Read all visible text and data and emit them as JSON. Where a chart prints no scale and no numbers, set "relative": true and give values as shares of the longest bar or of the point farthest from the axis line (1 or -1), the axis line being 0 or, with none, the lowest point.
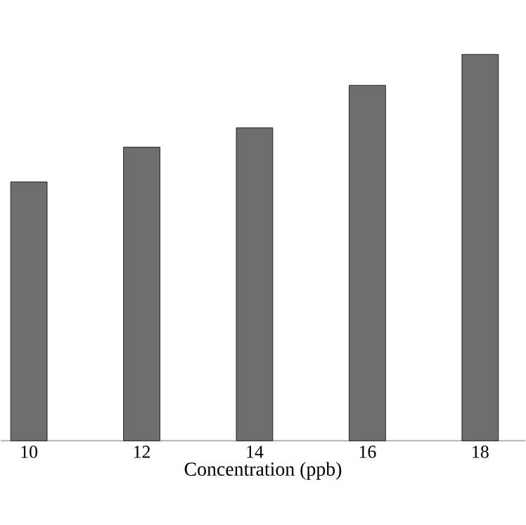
{
  "chart_data": {
    "type": "bar",
    "relative": true,
    "xlabel": "Concentration (ppb)",
    "categories": [
      "10",
      "12",
      "14",
      "16",
      "18"
    ],
    "values": [
      0.67,
      0.76,
      0.81,
      0.92,
      1
    ],
    "color": "#6e6e6e"
  }
}
